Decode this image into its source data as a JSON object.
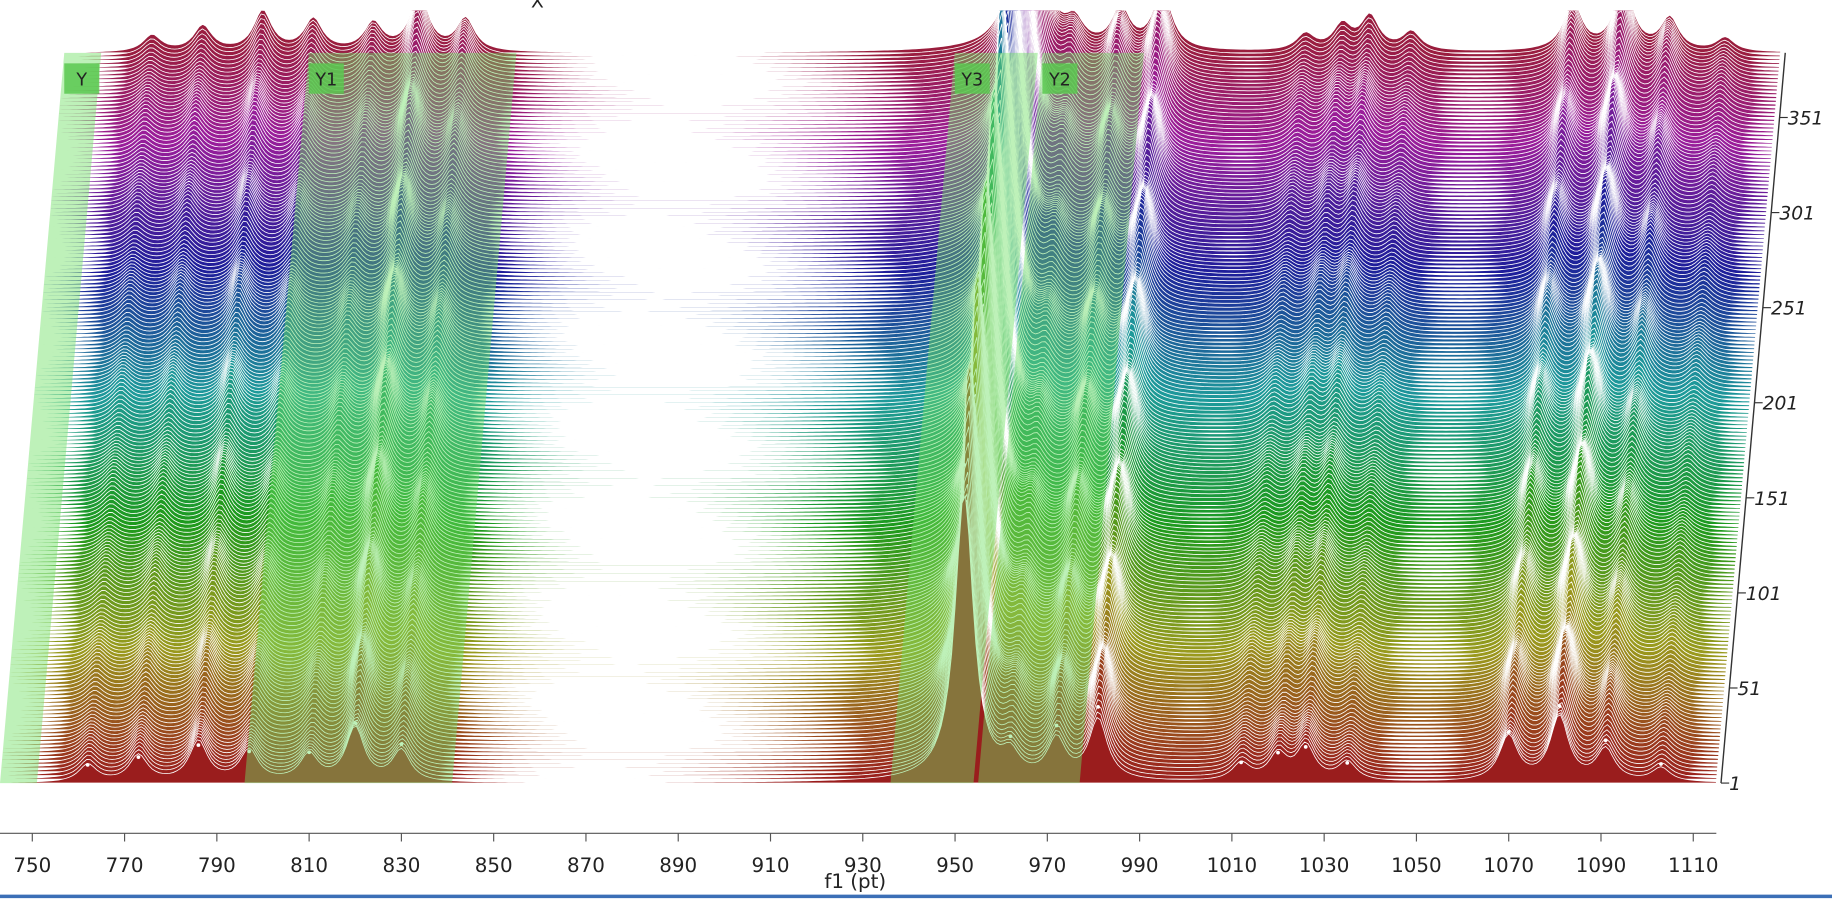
{
  "chart_data": {
    "type": "stacked-spectra",
    "xlabel": "f1 (pt)",
    "annotation": "X",
    "xlim": [
      743,
      1115
    ],
    "xticks": [
      750,
      770,
      790,
      810,
      830,
      850,
      870,
      890,
      910,
      930,
      950,
      970,
      990,
      1010,
      1030,
      1050,
      1070,
      1090,
      1110
    ],
    "ylim": [
      1,
      385
    ],
    "yticks": [
      1,
      51,
      101,
      151,
      201,
      251,
      301,
      351
    ],
    "peaks": {
      "x": [
        762,
        773,
        786,
        797,
        810,
        820,
        830,
        952,
        962,
        972,
        981,
        1012,
        1020,
        1026,
        1035,
        1070,
        1081,
        1091,
        1103
      ],
      "values": [
        14,
        20,
        30,
        24,
        22,
        48,
        30,
        270,
        22,
        40,
        60,
        14,
        20,
        26,
        14,
        40,
        62,
        32,
        14
      ]
    },
    "regions": [
      {
        "label": "Y",
        "start": 743,
        "end": 751
      },
      {
        "label": "Y1",
        "start": 796,
        "end": 841
      },
      {
        "label": "Y3",
        "start": 936,
        "end": 954
      },
      {
        "label": "Y2",
        "start": 955,
        "end": 977
      }
    ]
  }
}
